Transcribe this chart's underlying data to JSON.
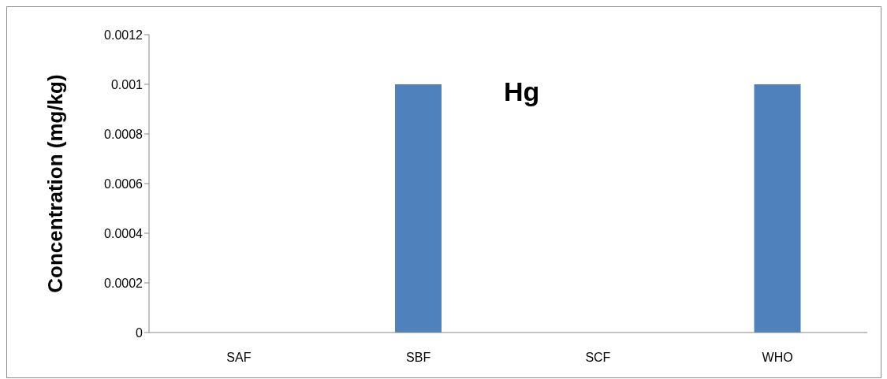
{
  "chart_data": {
    "type": "bar",
    "title": "Hg",
    "ylabel": "Concentration (mg/kg)",
    "categories": [
      "SAF",
      "SBF",
      "SCF",
      "WHO"
    ],
    "values": [
      0,
      0.001,
      0,
      0.001
    ],
    "color": "#4f81bd",
    "ylim": [
      0,
      0.0012
    ],
    "yticks": [
      0,
      0.0002,
      0.0004,
      0.0006,
      0.0008,
      0.001,
      0.0012
    ],
    "grid": false,
    "legend": false
  }
}
